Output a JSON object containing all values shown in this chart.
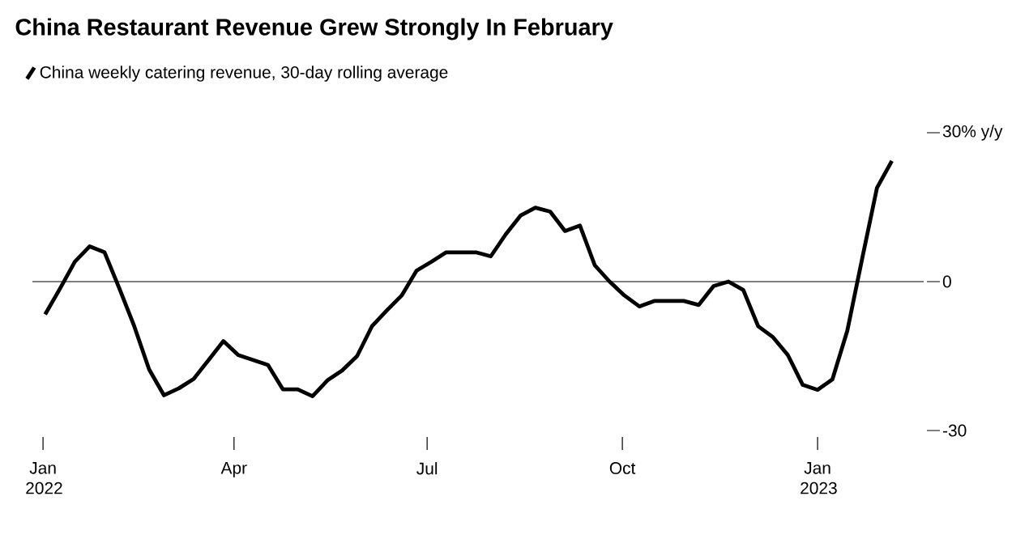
{
  "chart_data": {
    "type": "line",
    "title": "China Restaurant Revenue Grew Strongly In February",
    "x": [
      "2022-01-02",
      "2022-01-09",
      "2022-01-16",
      "2022-01-23",
      "2022-01-30",
      "2022-02-06",
      "2022-02-13",
      "2022-02-20",
      "2022-02-27",
      "2022-03-06",
      "2022-03-13",
      "2022-03-20",
      "2022-03-27",
      "2022-04-03",
      "2022-04-10",
      "2022-04-17",
      "2022-04-24",
      "2022-05-01",
      "2022-05-08",
      "2022-05-15",
      "2022-05-22",
      "2022-05-29",
      "2022-06-05",
      "2022-06-12",
      "2022-06-19",
      "2022-06-26",
      "2022-07-03",
      "2022-07-10",
      "2022-07-17",
      "2022-07-24",
      "2022-07-31",
      "2022-08-07",
      "2022-08-14",
      "2022-08-21",
      "2022-08-28",
      "2022-09-04",
      "2022-09-11",
      "2022-09-18",
      "2022-09-25",
      "2022-10-02",
      "2022-10-09",
      "2022-10-16",
      "2022-10-23",
      "2022-10-30",
      "2022-11-06",
      "2022-11-13",
      "2022-11-20",
      "2022-11-27",
      "2022-12-04",
      "2022-12-11",
      "2022-12-18",
      "2022-12-25",
      "2023-01-01",
      "2023-01-08",
      "2023-01-15",
      "2023-01-22",
      "2023-01-29",
      "2023-02-05"
    ],
    "series": [
      {
        "name": "China weekly catering revenue, 30-day rolling average",
        "color": "#000000",
        "values": [
          -6.6,
          -1.4,
          4.0,
          7.1,
          5.9,
          -1.4,
          -9.0,
          -17.7,
          -22.9,
          -21.5,
          -19.6,
          -15.8,
          -12.0,
          -14.8,
          -15.8,
          -16.8,
          -21.7,
          -21.7,
          -23.1,
          -19.9,
          -17.9,
          -15.0,
          -9.0,
          -5.8,
          -2.8,
          2.2,
          4.0,
          5.9,
          5.9,
          5.9,
          5.1,
          9.5,
          13.3,
          14.9,
          14.1,
          10.2,
          11.3,
          3.3,
          0,
          -2.8,
          -5.0,
          -3.9,
          -3.9,
          -3.9,
          -4.7,
          -0.9,
          0,
          -1.7,
          -9.0,
          -11.2,
          -14.8,
          -20.8,
          -21.8,
          -19.7,
          -9.9,
          4.6,
          18.9,
          24.3
        ]
      }
    ],
    "xlim": [
      "2021-12-27",
      "2023-02-20"
    ],
    "xticks": [
      {
        "value": "2022-01-01",
        "label": "Jan 2022"
      },
      {
        "value": "2022-04-01",
        "label": "Apr"
      },
      {
        "value": "2022-07-01",
        "label": "Jul"
      },
      {
        "value": "2022-10-01",
        "label": "Oct"
      },
      {
        "value": "2023-01-01",
        "label": "Jan 2023"
      }
    ],
    "ylim": [
      -30,
      30
    ],
    "yticks": [
      {
        "value": 30,
        "label": "30% y/y"
      },
      0,
      -30
    ],
    "ref_lines": [
      {
        "axis": "y",
        "value": 0
      }
    ],
    "grid": false,
    "legend": "top left",
    "marker": "none",
    "line_style": "solid"
  }
}
